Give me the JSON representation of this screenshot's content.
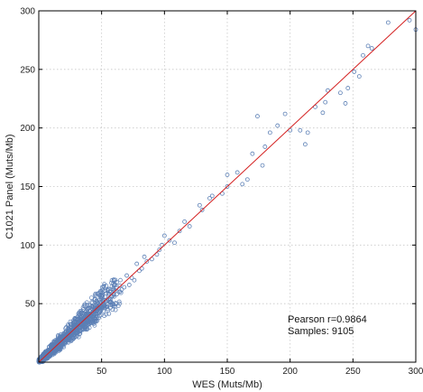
{
  "chart_data": {
    "type": "scatter",
    "title": "",
    "xlabel": "WES (Muts/Mb)",
    "ylabel": "C1021 Panel (Muts/Mb)",
    "xlim": [
      0,
      300
    ],
    "ylim": [
      0,
      300
    ],
    "xticks": [
      50,
      100,
      150,
      200,
      250,
      300
    ],
    "yticks": [
      50,
      100,
      150,
      200,
      250,
      300
    ],
    "grid": true,
    "legend": "none",
    "marker_color": "#5b7fb5",
    "fit_line_color": "#d42020",
    "fit_line": {
      "x": [
        0,
        300
      ],
      "y": [
        0,
        300
      ]
    },
    "annotations": [
      "Pearson r=0.9864",
      "Samples: 9105"
    ],
    "series": [
      {
        "x": [
          278,
          295,
          300,
          265,
          258,
          262,
          251,
          255,
          240,
          246,
          244,
          230,
          226,
          228,
          220,
          212,
          214,
          208,
          200,
          196,
          190,
          184,
          174,
          178,
          180,
          170,
          166,
          162,
          158,
          150,
          150,
          146,
          138,
          136,
          130,
          128,
          120,
          116,
          112,
          108,
          104,
          100,
          98,
          96,
          94,
          90,
          86,
          84,
          82,
          80,
          78,
          76,
          74,
          72,
          70,
          68,
          66,
          64,
          62,
          60,
          58,
          56,
          54,
          52,
          50,
          48,
          46,
          44,
          42,
          40,
          38,
          36,
          34,
          32,
          30,
          28,
          26,
          24,
          22,
          20,
          18,
          16,
          14,
          12,
          10,
          8,
          6,
          4,
          2
        ],
        "y": [
          290,
          292,
          284,
          268,
          262,
          270,
          248,
          244,
          230,
          234,
          221,
          232,
          213,
          222,
          218,
          186,
          196,
          198,
          198,
          212,
          202,
          196,
          210,
          168,
          184,
          178,
          156,
          152,
          162,
          150,
          160,
          144,
          142,
          140,
          130,
          134,
          116,
          120,
          112,
          102,
          104,
          108,
          100,
          96,
          92,
          88,
          86,
          90,
          80,
          78,
          84,
          70,
          72,
          66,
          74,
          64,
          62,
          60,
          58,
          70,
          56,
          54,
          52,
          50,
          48,
          46,
          44,
          40,
          42,
          38,
          36,
          34,
          32,
          30,
          28,
          26,
          24,
          22,
          20,
          18,
          16,
          14,
          12,
          10,
          8,
          6,
          4,
          3,
          1
        ]
      }
    ]
  }
}
